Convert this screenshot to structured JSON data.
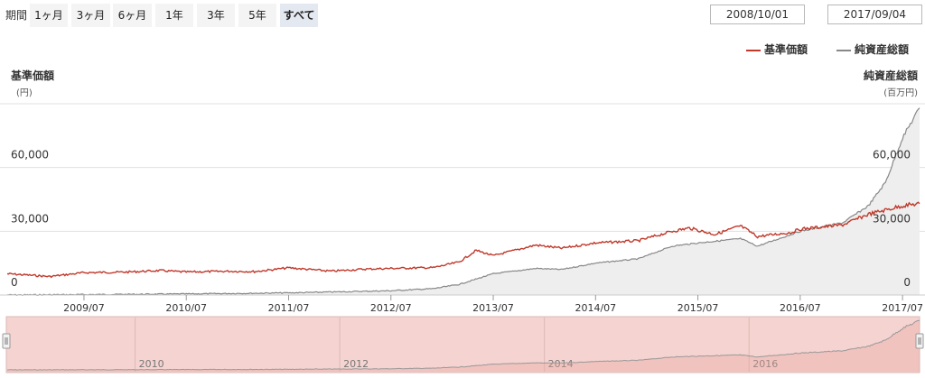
{
  "range_selector": {
    "label": "期間",
    "buttons": [
      {
        "label": "1ヶ月",
        "active": false
      },
      {
        "label": "3ヶ月",
        "active": false
      },
      {
        "label": "6ヶ月",
        "active": false
      },
      {
        "label": "1年",
        "active": false
      },
      {
        "label": "3年",
        "active": false
      },
      {
        "label": "5年",
        "active": false
      },
      {
        "label": "すべて",
        "active": true
      }
    ],
    "from_date": "2008/10/01",
    "separator": "〜",
    "to_date": "2017/09/04"
  },
  "chart_data": {
    "type": "line",
    "title": "",
    "legend_position": "top-right",
    "x_tick_labels": [
      "2009/07",
      "2010/07",
      "2011/07",
      "2012/07",
      "2013/07",
      "2014/07",
      "2015/07",
      "2016/07",
      "2017/07"
    ],
    "navigator_tick_labels": [
      "2010",
      "2012",
      "2014",
      "2016"
    ],
    "left_axis": {
      "title": "基準価額",
      "unit": "(円)",
      "ticks": [
        {
          "value": 0,
          "label": "0"
        },
        {
          "value": 30000,
          "label": "30,000"
        },
        {
          "value": 60000,
          "label": "60,000"
        }
      ],
      "ylim": [
        0,
        90000
      ]
    },
    "right_axis": {
      "title": "純資産総額",
      "unit": "(百万円)",
      "ticks": [
        {
          "value": 0,
          "label": "0"
        },
        {
          "value": 30000,
          "label": "30,000"
        },
        {
          "value": 60000,
          "label": "60,000"
        }
      ],
      "ylim": [
        0,
        90000
      ]
    },
    "grid": true,
    "series": [
      {
        "name": "基準価額",
        "axis": "left",
        "color": "#c0392b",
        "points": [
          [
            "2008-10",
            10000
          ],
          [
            "2008-12",
            9500
          ],
          [
            "2009-03",
            8700
          ],
          [
            "2009-07",
            10500
          ],
          [
            "2009-12",
            10800
          ],
          [
            "2010-04",
            11500
          ],
          [
            "2010-07",
            10800
          ],
          [
            "2010-12",
            11200
          ],
          [
            "2011-03",
            11000
          ],
          [
            "2011-07",
            12800
          ],
          [
            "2011-12",
            11200
          ],
          [
            "2012-04",
            12200
          ],
          [
            "2012-07",
            12500
          ],
          [
            "2012-12",
            12900
          ],
          [
            "2013-03",
            15500
          ],
          [
            "2013-05",
            21000
          ],
          [
            "2013-07",
            18500
          ],
          [
            "2013-12",
            23500
          ],
          [
            "2014-03",
            22000
          ],
          [
            "2014-07",
            24500
          ],
          [
            "2014-12",
            25500
          ],
          [
            "2015-04",
            30000
          ],
          [
            "2015-06",
            31500
          ],
          [
            "2015-07",
            30500
          ],
          [
            "2015-09",
            28500
          ],
          [
            "2015-12",
            32500
          ],
          [
            "2016-02",
            27500
          ],
          [
            "2016-06",
            29500
          ],
          [
            "2016-07",
            31000
          ],
          [
            "2016-12",
            33000
          ],
          [
            "2017-03",
            38000
          ],
          [
            "2017-07",
            42000
          ],
          [
            "2017-09",
            43000
          ]
        ]
      },
      {
        "name": "純資産総額",
        "axis": "right",
        "color": "#888888",
        "points": [
          [
            "2008-10",
            50
          ],
          [
            "2009-07",
            200
          ],
          [
            "2010-07",
            500
          ],
          [
            "2011-07",
            1000
          ],
          [
            "2012-07",
            2000
          ],
          [
            "2012-12",
            3000
          ],
          [
            "2013-03",
            5000
          ],
          [
            "2013-07",
            10000
          ],
          [
            "2013-12",
            12500
          ],
          [
            "2014-03",
            12000
          ],
          [
            "2014-07",
            15000
          ],
          [
            "2014-12",
            17000
          ],
          [
            "2015-04",
            23000
          ],
          [
            "2015-07",
            24500
          ],
          [
            "2015-12",
            26500
          ],
          [
            "2016-02",
            23000
          ],
          [
            "2016-07",
            30000
          ],
          [
            "2016-12",
            34000
          ],
          [
            "2017-03",
            42000
          ],
          [
            "2017-05",
            53000
          ],
          [
            "2017-07",
            74000
          ],
          [
            "2017-09",
            88000
          ]
        ]
      }
    ]
  }
}
